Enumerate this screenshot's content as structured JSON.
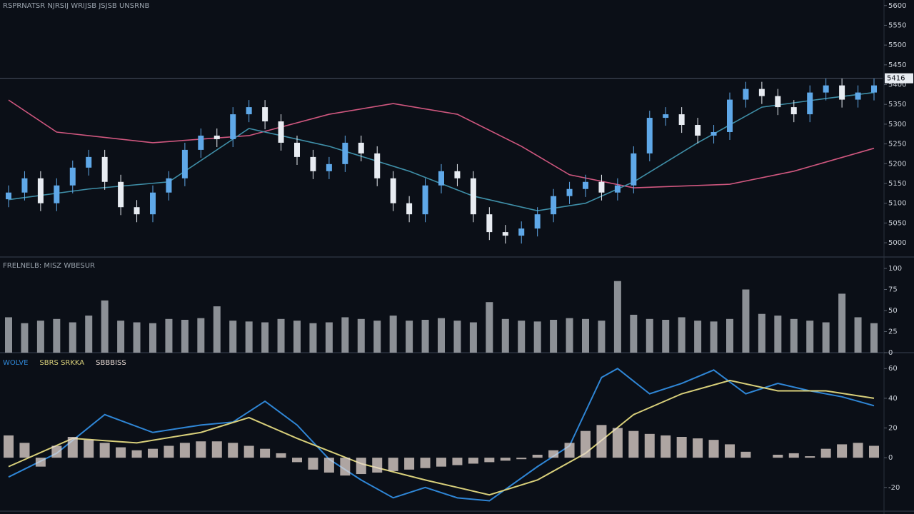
{
  "chart_data": [
    {
      "type": "candlestick",
      "title": "RSPRNATSR NJRSIJ WRIJSB JSJSB UNSRNB",
      "open": [
        5110,
        5127,
        5163,
        5100,
        5145,
        5190,
        5217,
        5154,
        5090,
        5072,
        5127,
        5163,
        5235,
        5271,
        5262,
        5325,
        5343,
        5307,
        5253,
        5217,
        5181,
        5199,
        5253,
        5226,
        5163,
        5100,
        5072,
        5145,
        5181,
        5163,
        5072,
        5027,
        5018,
        5036,
        5072,
        5118,
        5136,
        5154,
        5127,
        5145,
        5226,
        5316,
        5325,
        5298,
        5271,
        5280,
        5362,
        5389,
        5371,
        5343,
        5325,
        5380,
        5398,
        5362,
        5380
      ],
      "high": [
        5145,
        5181,
        5181,
        5163,
        5208,
        5235,
        5235,
        5172,
        5108,
        5145,
        5181,
        5253,
        5289,
        5289,
        5343,
        5361,
        5361,
        5325,
        5271,
        5235,
        5217,
        5271,
        5271,
        5244,
        5181,
        5118,
        5163,
        5199,
        5199,
        5181,
        5090,
        5045,
        5054,
        5090,
        5136,
        5154,
        5172,
        5172,
        5163,
        5244,
        5334,
        5343,
        5343,
        5316,
        5298,
        5380,
        5407,
        5407,
        5389,
        5361,
        5398,
        5416,
        5416,
        5398,
        5416
      ],
      "low": [
        5090,
        5107,
        5080,
        5080,
        5125,
        5170,
        5134,
        5070,
        5052,
        5052,
        5107,
        5143,
        5215,
        5242,
        5242,
        5305,
        5287,
        5233,
        5197,
        5161,
        5161,
        5179,
        5206,
        5143,
        5080,
        5052,
        5052,
        5125,
        5143,
        5052,
        5007,
        4998,
        4998,
        5016,
        5052,
        5098,
        5116,
        5107,
        5107,
        5125,
        5206,
        5296,
        5278,
        5251,
        5251,
        5260,
        5342,
        5351,
        5323,
        5305,
        5305,
        5360,
        5342,
        5342,
        5360
      ],
      "close": [
        5127,
        5163,
        5100,
        5145,
        5190,
        5217,
        5154,
        5090,
        5072,
        5127,
        5163,
        5235,
        5271,
        5262,
        5325,
        5343,
        5307,
        5253,
        5217,
        5181,
        5199,
        5253,
        5226,
        5163,
        5100,
        5072,
        5145,
        5181,
        5163,
        5072,
        5027,
        5018,
        5036,
        5072,
        5118,
        5136,
        5154,
        5127,
        5145,
        5226,
        5316,
        5325,
        5298,
        5271,
        5280,
        5362,
        5389,
        5371,
        5343,
        5325,
        5380,
        5398,
        5362,
        5380,
        5398
      ],
      "up_color": "#5fa8e8",
      "down_color": "#e8ecf2",
      "lines": [
        {
          "color": "#d0577f",
          "x": [
            0,
            3,
            9,
            15,
            20,
            24,
            28,
            32,
            35,
            39,
            45,
            49,
            54
          ],
          "values": [
            5361,
            5280,
            5253,
            5271,
            5325,
            5352,
            5325,
            5244,
            5172,
            5139,
            5148,
            5181,
            5239
          ]
        },
        {
          "color": "#3f8fa8",
          "x": [
            0,
            5,
            10,
            15,
            20,
            25,
            29,
            33,
            36,
            39,
            43,
            47,
            51,
            54
          ],
          "values": [
            5109,
            5136,
            5154,
            5289,
            5244,
            5181,
            5118,
            5081,
            5100,
            5154,
            5253,
            5343,
            5365,
            5380
          ]
        }
      ],
      "last_price": 5416,
      "ylim": [
        4964,
        5614
      ],
      "yticks": [
        5600,
        5550,
        5500,
        5450,
        5400,
        5350,
        5300,
        5250,
        5200,
        5150,
        5100,
        5050,
        5000
      ]
    },
    {
      "type": "bar",
      "title": "FRELNELB: MISZ WBESUR",
      "color": "#8c9096",
      "values": [
        42,
        35,
        38,
        40,
        36,
        44,
        62,
        38,
        36,
        35,
        40,
        39,
        41,
        55,
        38,
        37,
        36,
        40,
        38,
        35,
        36,
        42,
        40,
        38,
        44,
        38,
        39,
        41,
        38,
        36,
        60,
        40,
        38,
        37,
        39,
        41,
        40,
        38,
        85,
        45,
        40,
        39,
        42,
        38,
        37,
        40,
        75,
        46,
        44,
        40,
        38,
        36,
        70,
        42,
        35
      ],
      "ylim": [
        0,
        100
      ],
      "yticks": [
        0,
        25,
        50,
        75,
        100
      ]
    },
    {
      "type": "macd",
      "series": [
        {
          "name": "WOLVE",
          "color": "#2f86d6",
          "x": [
            0,
            3,
            6,
            9,
            12,
            14,
            16,
            18,
            20,
            22,
            24,
            26,
            28,
            30,
            33,
            35,
            37,
            38,
            40,
            42,
            44,
            46,
            48,
            50,
            52,
            54
          ],
          "values": [
            -13,
            3,
            29,
            17,
            22,
            24,
            38,
            22,
            -1,
            -15,
            -27,
            -20,
            -27,
            -29,
            -6,
            8,
            54,
            60,
            43,
            50,
            59,
            43,
            50,
            45,
            41,
            35
          ]
        },
        {
          "name": "SBRS SRKKA",
          "color": "#d8cf7a",
          "x": [
            0,
            4,
            8,
            12,
            15,
            18,
            22,
            26,
            30,
            33,
            36,
            39,
            42,
            45,
            48,
            51,
            54
          ],
          "values": [
            -6,
            13,
            10,
            17,
            27,
            13,
            -4,
            -15,
            -25,
            -15,
            3,
            29,
            43,
            52,
            45,
            45,
            40
          ]
        },
        {
          "name": "SBBBISS",
          "color": "#e6d8d2",
          "values": [
            15,
            10,
            -6,
            8,
            14,
            12,
            10,
            7,
            5,
            6,
            8,
            10,
            11,
            11,
            10,
            8,
            6,
            3,
            -3,
            -8,
            -10,
            -12,
            -11,
            -10,
            -9,
            -8,
            -7,
            -6,
            -5,
            -4,
            -3,
            -2,
            -1,
            2,
            5,
            10,
            18,
            22,
            20,
            18,
            16,
            15,
            14,
            13,
            12,
            9,
            4,
            0,
            2,
            3,
            1,
            6,
            9,
            10,
            8
          ]
        }
      ],
      "ylim": [
        -35,
        63
      ],
      "yticks": [
        60,
        40,
        20,
        0,
        -20
      ]
    }
  ]
}
